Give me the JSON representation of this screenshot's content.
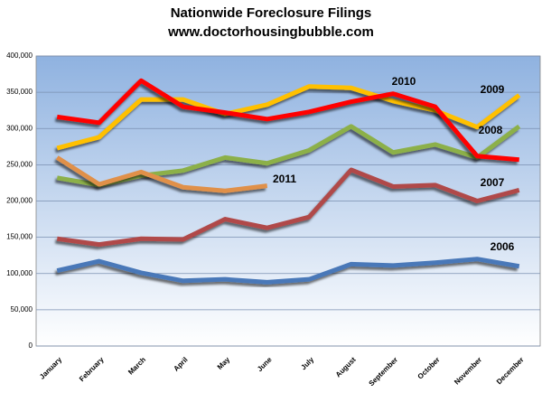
{
  "chart_data": {
    "type": "line",
    "title": "Nationwide Foreclosure Filings",
    "subtitle": "www.doctorhousingbubble.com",
    "categories": [
      "January",
      "February",
      "March",
      "April",
      "May",
      "June",
      "July",
      "August",
      "September",
      "October",
      "November",
      "December"
    ],
    "ylim": [
      0,
      400000
    ],
    "yticks": [
      {
        "value": 0,
        "label": "0"
      },
      {
        "value": 50000,
        "label": "50,000"
      },
      {
        "value": 100000,
        "label": "100,000"
      },
      {
        "value": 150000,
        "label": "150,000"
      },
      {
        "value": 200000,
        "label": "200,000"
      },
      {
        "value": 250000,
        "label": "250,000"
      },
      {
        "value": 300000,
        "label": "300,000"
      },
      {
        "value": 350000,
        "label": "350,000"
      },
      {
        "value": 400000,
        "label": "400,000"
      }
    ],
    "grid": true,
    "series": [
      {
        "name": "2006",
        "color": "#4a78b8",
        "values": [
          104000,
          117000,
          101000,
          90000,
          92000,
          88000,
          92000,
          113000,
          111000,
          115000,
          120000,
          110000
        ]
      },
      {
        "name": "2007",
        "color": "#b04a48",
        "values": [
          148000,
          140000,
          148000,
          147000,
          175000,
          163000,
          178000,
          243000,
          220000,
          222000,
          200000,
          215000
        ]
      },
      {
        "name": "2008",
        "color": "#8cb04a",
        "values": [
          232000,
          222000,
          235000,
          242000,
          260000,
          252000,
          270000,
          303000,
          267000,
          278000,
          260000,
          303000
        ]
      },
      {
        "name": "2009",
        "color": "#ffc000",
        "values": [
          273000,
          288000,
          340000,
          340000,
          320000,
          333000,
          358000,
          356000,
          338000,
          325000,
          302000,
          346000
        ]
      },
      {
        "name": "2010",
        "color": "#ff0000",
        "values": [
          316000,
          308000,
          366000,
          330000,
          322000,
          313000,
          323000,
          337000,
          348000,
          330000,
          262000,
          257000
        ]
      },
      {
        "name": "2011",
        "color": "#e0904a",
        "values": [
          260000,
          223000,
          240000,
          219000,
          214000,
          221000,
          null,
          null,
          null,
          null,
          null,
          null
        ]
      }
    ]
  }
}
